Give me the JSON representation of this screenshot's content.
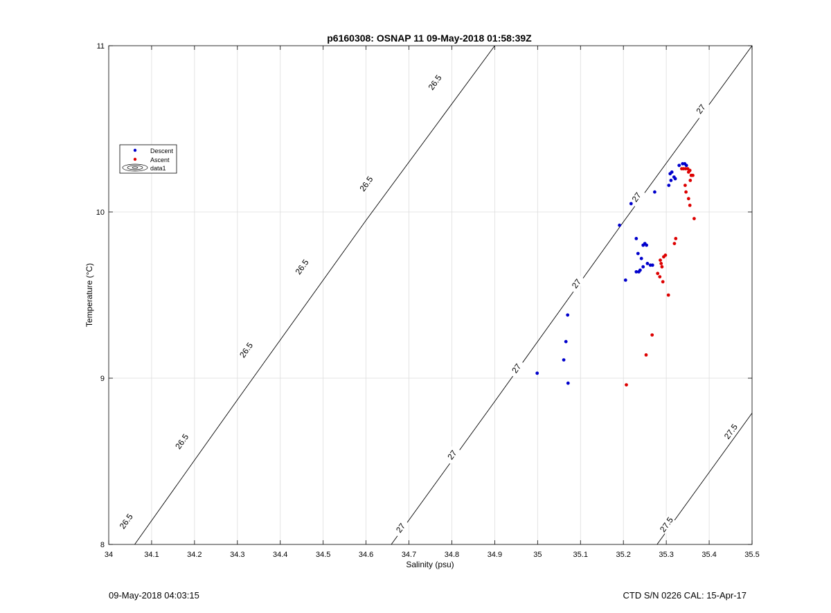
{
  "chart_data": {
    "type": "scatter",
    "title": "p6160308: OSNAP 11 09-May-2018 01:58:39Z",
    "xlabel": "Salinity (psu)",
    "ylabel": "Temperature (°C)",
    "xlim": [
      34,
      35.5
    ],
    "ylim": [
      8,
      11
    ],
    "x_ticks": [
      "34",
      "34.1",
      "34.2",
      "34.3",
      "34.4",
      "34.5",
      "34.6",
      "34.7",
      "34.8",
      "34.9",
      "35",
      "35.1",
      "35.2",
      "35.3",
      "35.4",
      "35.5"
    ],
    "y_ticks": [
      "8",
      "9",
      "10",
      "11"
    ],
    "grid": true,
    "legend": {
      "placement": "upper-left",
      "entries": [
        "Descent",
        "Ascent",
        "data1"
      ]
    },
    "colors": {
      "descent": "#0000cc",
      "ascent": "#dd0000",
      "contour": "#000000",
      "grid": "#dddddd"
    },
    "series": [
      {
        "name": "Descent",
        "points": [
          [
            34.999,
            9.03
          ],
          [
            35.07,
            9.38
          ],
          [
            35.066,
            9.22
          ],
          [
            35.061,
            9.11
          ],
          [
            35.071,
            8.97
          ],
          [
            35.191,
            9.92
          ],
          [
            35.218,
            10.05
          ],
          [
            35.23,
            9.84
          ],
          [
            35.205,
            9.59
          ],
          [
            35.234,
            9.75
          ],
          [
            35.246,
            9.8
          ],
          [
            35.25,
            9.81
          ],
          [
            35.254,
            9.8
          ],
          [
            35.242,
            9.72
          ],
          [
            35.256,
            9.69
          ],
          [
            35.263,
            9.68
          ],
          [
            35.268,
            9.68
          ],
          [
            35.246,
            9.67
          ],
          [
            35.239,
            9.65
          ],
          [
            35.23,
            9.64
          ],
          [
            35.236,
            9.64
          ],
          [
            35.273,
            10.12
          ],
          [
            35.306,
            10.16
          ],
          [
            35.311,
            10.19
          ],
          [
            35.318,
            10.21
          ],
          [
            35.321,
            10.2
          ],
          [
            35.309,
            10.23
          ],
          [
            35.313,
            10.24
          ],
          [
            35.33,
            10.28
          ],
          [
            35.338,
            10.29
          ],
          [
            35.343,
            10.29
          ],
          [
            35.347,
            10.28
          ]
        ]
      },
      {
        "name": "Ascent",
        "points": [
          [
            35.207,
            8.96
          ],
          [
            35.253,
            9.14
          ],
          [
            35.267,
            9.26
          ],
          [
            35.305,
            9.5
          ],
          [
            35.292,
            9.58
          ],
          [
            35.285,
            9.61
          ],
          [
            35.28,
            9.63
          ],
          [
            35.29,
            9.67
          ],
          [
            35.288,
            9.69
          ],
          [
            35.294,
            9.73
          ],
          [
            35.298,
            9.74
          ],
          [
            35.286,
            9.71
          ],
          [
            35.319,
            9.81
          ],
          [
            35.322,
            9.84
          ],
          [
            35.365,
            9.96
          ],
          [
            35.355,
            10.04
          ],
          [
            35.352,
            10.08
          ],
          [
            35.346,
            10.12
          ],
          [
            35.344,
            10.16
          ],
          [
            35.356,
            10.19
          ],
          [
            35.362,
            10.22
          ],
          [
            35.358,
            10.22
          ],
          [
            35.352,
            10.24
          ],
          [
            35.355,
            10.25
          ],
          [
            35.35,
            10.26
          ],
          [
            35.345,
            10.26
          ],
          [
            35.34,
            10.26
          ],
          [
            35.336,
            10.26
          ]
        ]
      }
    ],
    "contours": [
      {
        "level": "26.5",
        "points": [
          [
            34.0,
            7.78
          ],
          [
            34.3,
            8.87
          ],
          [
            34.6,
            9.95
          ],
          [
            34.9,
            11.0
          ]
        ],
        "labels": [
          [
            34.04,
            8.14
          ],
          [
            34.17,
            8.62
          ],
          [
            34.32,
            9.17
          ],
          [
            34.45,
            9.67
          ],
          [
            34.6,
            10.17
          ],
          [
            34.76,
            10.78
          ]
        ]
      },
      {
        "level": "27",
        "points": [
          [
            34.6,
            7.79
          ],
          [
            34.9,
            8.86
          ],
          [
            35.2,
            9.94
          ],
          [
            35.5,
            11.0
          ]
        ],
        "labels": [
          [
            34.68,
            8.1
          ],
          [
            34.8,
            8.54
          ],
          [
            34.95,
            9.06
          ],
          [
            35.09,
            9.57
          ],
          [
            35.23,
            10.09
          ],
          [
            35.38,
            10.62
          ]
        ]
      },
      {
        "level": "27.5",
        "points": [
          [
            35.2,
            7.72
          ],
          [
            35.5,
            8.79
          ]
        ],
        "labels": [
          [
            35.3,
            8.12
          ],
          [
            35.45,
            8.68
          ]
        ]
      }
    ]
  },
  "footer": {
    "left": "09-May-2018 04:03:15",
    "right": "CTD S/N 0226  CAL: 15-Apr-17"
  }
}
